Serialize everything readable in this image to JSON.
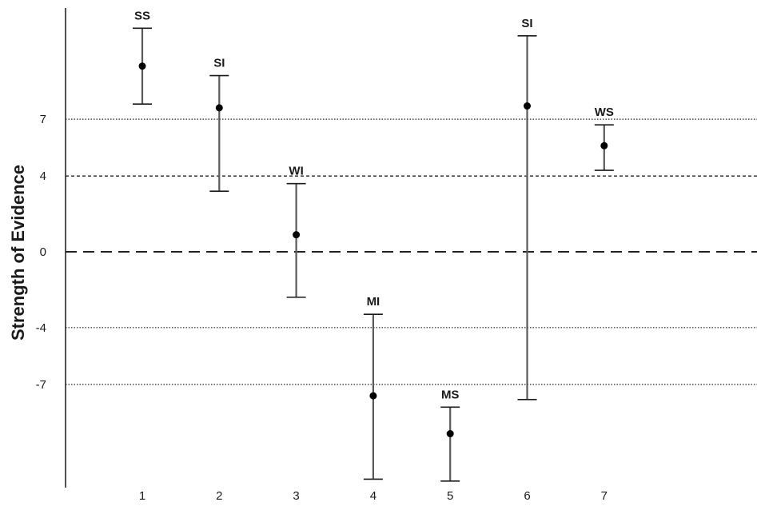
{
  "chart_data": {
    "type": "scatter",
    "title": "",
    "xlabel": "",
    "ylabel": "Strength of Evidence",
    "x_ticks": [
      "1",
      "2",
      "3",
      "4",
      "5",
      "6",
      "7"
    ],
    "y_ticks": [
      "7",
      "4",
      "0",
      "-4",
      "-7"
    ],
    "y_tick_values": [
      7,
      4,
      0,
      -4,
      -7
    ],
    "ylim": [
      -12.1,
      12.8
    ],
    "grid": false,
    "legend": "none",
    "reference_lines": [
      {
        "y": 7,
        "style": "dotted"
      },
      {
        "y": 4,
        "style": "dashed"
      },
      {
        "y": 0,
        "style": "long-dashed"
      },
      {
        "y": -4,
        "style": "dotted"
      },
      {
        "y": -7,
        "style": "dotted"
      }
    ],
    "points": [
      {
        "x": 1,
        "label": "SS",
        "value": 9.8,
        "lower": 7.8,
        "upper": 11.8
      },
      {
        "x": 2,
        "label": "SI",
        "value": 7.6,
        "lower": 3.2,
        "upper": 9.3
      },
      {
        "x": 3,
        "label": "WI",
        "value": 0.9,
        "lower": -2.4,
        "upper": 3.6
      },
      {
        "x": 4,
        "label": "MI",
        "value": -7.6,
        "lower": -12.0,
        "upper": -3.3
      },
      {
        "x": 5,
        "label": "MS",
        "value": -9.6,
        "lower": -12.1,
        "upper": -8.2
      },
      {
        "x": 6,
        "label": "SI",
        "value": 7.7,
        "lower": -7.8,
        "upper": 11.4
      },
      {
        "x": 7,
        "label": "WS",
        "value": 5.6,
        "lower": 4.3,
        "upper": 6.7
      }
    ]
  },
  "colors": {
    "axis": "#1a1a1a",
    "error_bar": "#5a5a5a",
    "point": "#000000",
    "reference_line": "#222222"
  }
}
